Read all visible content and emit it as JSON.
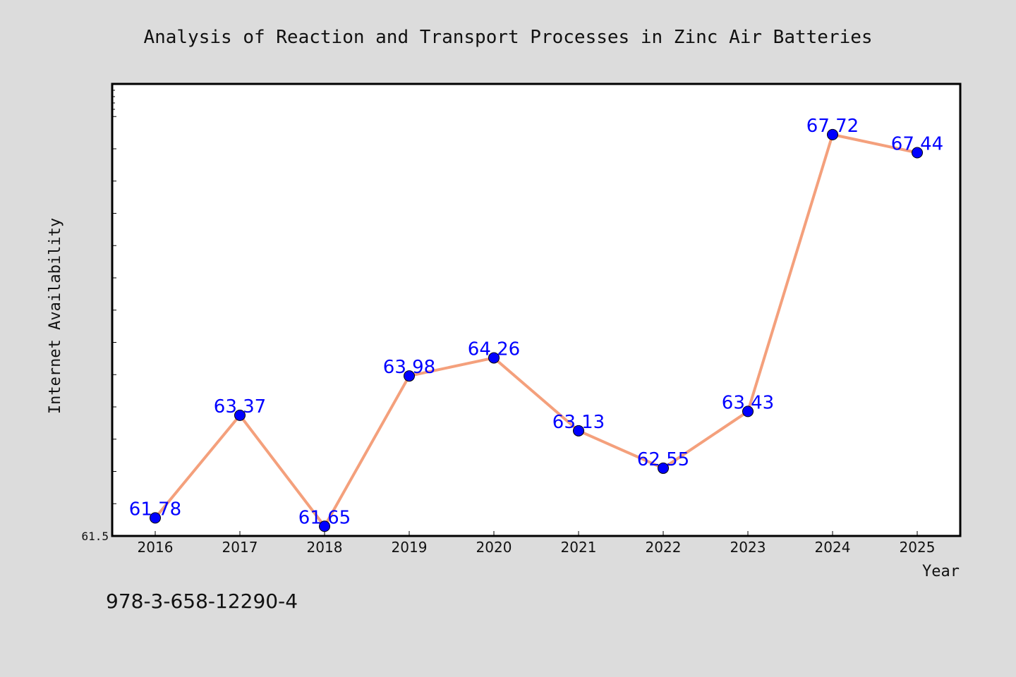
{
  "chart_data": {
    "type": "line",
    "title": "Analysis of Reaction and Transport Processes in Zinc Air Batteries",
    "xlabel": "Year",
    "ylabel": "Internet Availability",
    "categories": [
      "2016",
      "2017",
      "2018",
      "2019",
      "2020",
      "2021",
      "2022",
      "2023",
      "2024",
      "2025"
    ],
    "values": [
      61.78,
      63.37,
      61.65,
      63.98,
      64.26,
      63.13,
      62.55,
      63.43,
      67.72,
      67.44
    ],
    "data_labels": [
      "61.78",
      "63.37",
      "61.65",
      "63.98",
      "64.26",
      "63.13",
      "62.55",
      "63.43",
      "67.72",
      "67.44"
    ],
    "y_tick_labels": [
      "61.5"
    ],
    "ylim": [
      61.5,
      68.5
    ],
    "grid": false,
    "legend": "none",
    "colors": {
      "line": "#f4a07c",
      "marker": "#0000ff",
      "label": "#0000ff",
      "background": "#dcdcdc",
      "plot_background": "#ffffff"
    }
  },
  "footer": {
    "isbn": "978-3-658-12290-4"
  }
}
